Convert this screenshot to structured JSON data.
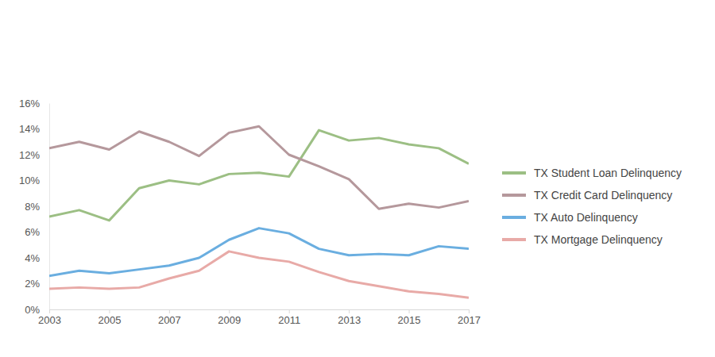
{
  "chart_data": {
    "type": "line",
    "x": [
      2003,
      2004,
      2005,
      2006,
      2007,
      2008,
      2009,
      2010,
      2011,
      2012,
      2013,
      2014,
      2015,
      2016,
      2017
    ],
    "xlim": [
      2003,
      2017
    ],
    "xticks": [
      2003,
      2005,
      2007,
      2009,
      2011,
      2013,
      2015,
      2017
    ],
    "ylim": [
      0,
      16
    ],
    "yticks": [
      {
        "value": 0,
        "label": "0%"
      },
      {
        "value": 2,
        "label": "2%"
      },
      {
        "value": 4,
        "label": "4%"
      },
      {
        "value": 6,
        "label": "6%"
      },
      {
        "value": 8,
        "label": "8%"
      },
      {
        "value": 10,
        "label": "10%"
      },
      {
        "value": 12,
        "label": "12%"
      },
      {
        "value": 14,
        "label": "14%"
      },
      {
        "value": 16,
        "label": "16%"
      }
    ],
    "grid": false,
    "legend": "right",
    "series": [
      {
        "name": "TX Student Loan Delinquency",
        "color": "#9cbf84",
        "values": [
          7.2,
          7.7,
          6.9,
          9.4,
          10.0,
          9.7,
          10.5,
          10.6,
          10.3,
          13.9,
          13.1,
          13.3,
          12.8,
          12.5,
          11.3
        ]
      },
      {
        "name": "TX Credit Card Delinquency",
        "color": "#b5989c",
        "values": [
          12.5,
          13.0,
          12.4,
          13.8,
          13.0,
          11.9,
          13.7,
          14.2,
          12.0,
          11.1,
          10.1,
          7.8,
          8.2,
          7.9,
          8.4
        ]
      },
      {
        "name": "TX Auto Delinquency",
        "color": "#6aaee0",
        "values": [
          2.6,
          3.0,
          2.8,
          3.1,
          3.4,
          4.0,
          5.4,
          6.3,
          5.9,
          4.7,
          4.2,
          4.3,
          4.2,
          4.9,
          4.7
        ]
      },
      {
        "name": "TX Mortgage Delinquency",
        "color": "#e8aaa7",
        "values": [
          1.6,
          1.7,
          1.6,
          1.7,
          2.4,
          3.0,
          4.5,
          4.0,
          3.7,
          2.9,
          2.2,
          1.8,
          1.4,
          1.2,
          0.9
        ]
      }
    ]
  }
}
